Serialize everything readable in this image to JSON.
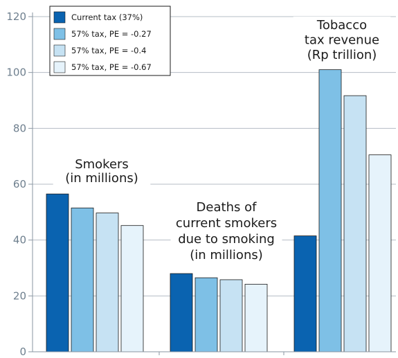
{
  "chart_data": {
    "type": "bar",
    "title": "",
    "xlabel": "",
    "ylabel": "",
    "ylim": [
      0,
      120
    ],
    "yticks": [
      0,
      20,
      40,
      60,
      80,
      100,
      120
    ],
    "grid": true,
    "legend_position": "top-left",
    "categories": [
      [
        "Smokers",
        "(in millions)"
      ],
      [
        "Deaths of",
        "current smokers",
        "due to smoking",
        "(in millions)"
      ],
      [
        "Tobacco",
        "tax revenue",
        "(Rp trillion)"
      ]
    ],
    "series": [
      {
        "name": "Current tax (37%)",
        "color": "#0a63b0",
        "values": [
          56.5,
          28,
          41.5
        ]
      },
      {
        "name": "57% tax, PE = -0.27",
        "color": "#7ec0e6",
        "values": [
          51.5,
          26.5,
          101
        ]
      },
      {
        "name": "57% tax, PE = -0.4",
        "color": "#c6e2f3",
        "values": [
          49.7,
          25.8,
          91.7
        ]
      },
      {
        "name": "57% tax, PE = -0.67",
        "color": "#e6f3fb",
        "values": [
          45.2,
          24.2,
          70.5
        ]
      }
    ]
  }
}
